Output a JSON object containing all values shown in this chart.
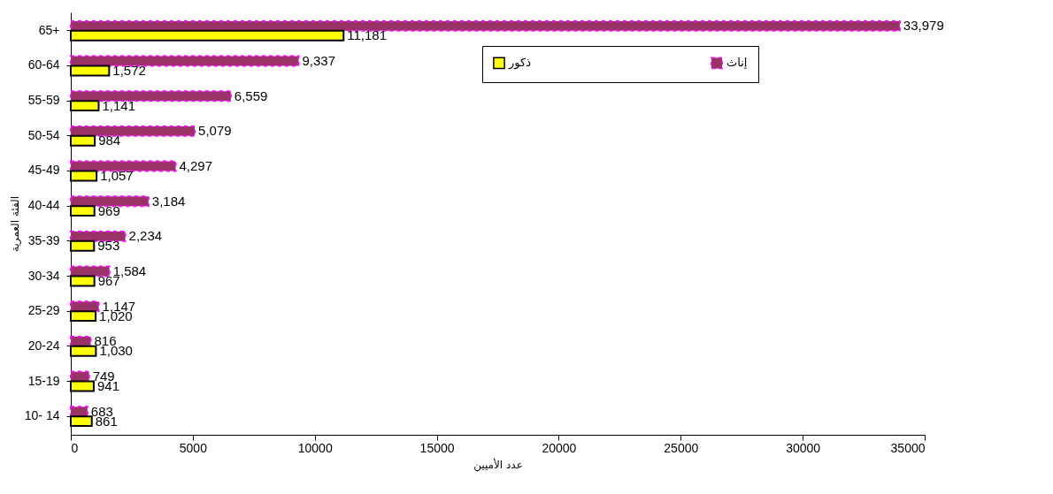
{
  "chart_data": {
    "type": "bar",
    "orientation": "horizontal",
    "xlabel": "عدد الأميين",
    "ylabel": "الفئة العمرية",
    "categories": [
      "65+",
      "60-64",
      "55-59",
      "50-54",
      "45-49",
      "40-44",
      "35-39",
      "30-34",
      "25-29",
      "20-24",
      "15-19",
      "10- 14"
    ],
    "series": [
      {
        "name": "إناث",
        "color": "#993366",
        "values": [
          33979,
          9337,
          6559,
          5079,
          4297,
          3184,
          2234,
          1584,
          1147,
          816,
          749,
          683
        ],
        "value_labels": [
          "33,979",
          "9,337",
          "6,559",
          "5,079",
          "4,297",
          "3,184",
          "2,234",
          "1,584",
          "1,147",
          "816",
          "749",
          "683"
        ]
      },
      {
        "name": "ذكور",
        "color": "#ffff00",
        "values": [
          11181,
          1572,
          1141,
          984,
          1057,
          969,
          953,
          967,
          1020,
          1030,
          941,
          861
        ],
        "value_labels": [
          "11,181",
          "1,572",
          "1,141",
          "984",
          "1,057",
          "969",
          "953",
          "967",
          "1,020",
          "1,030",
          "941",
          "861"
        ]
      }
    ],
    "xlim": [
      0,
      35000
    ],
    "xticks": [
      0,
      5000,
      10000,
      15000,
      20000,
      25000,
      30000,
      35000
    ],
    "grid": false,
    "legend": "top right"
  }
}
